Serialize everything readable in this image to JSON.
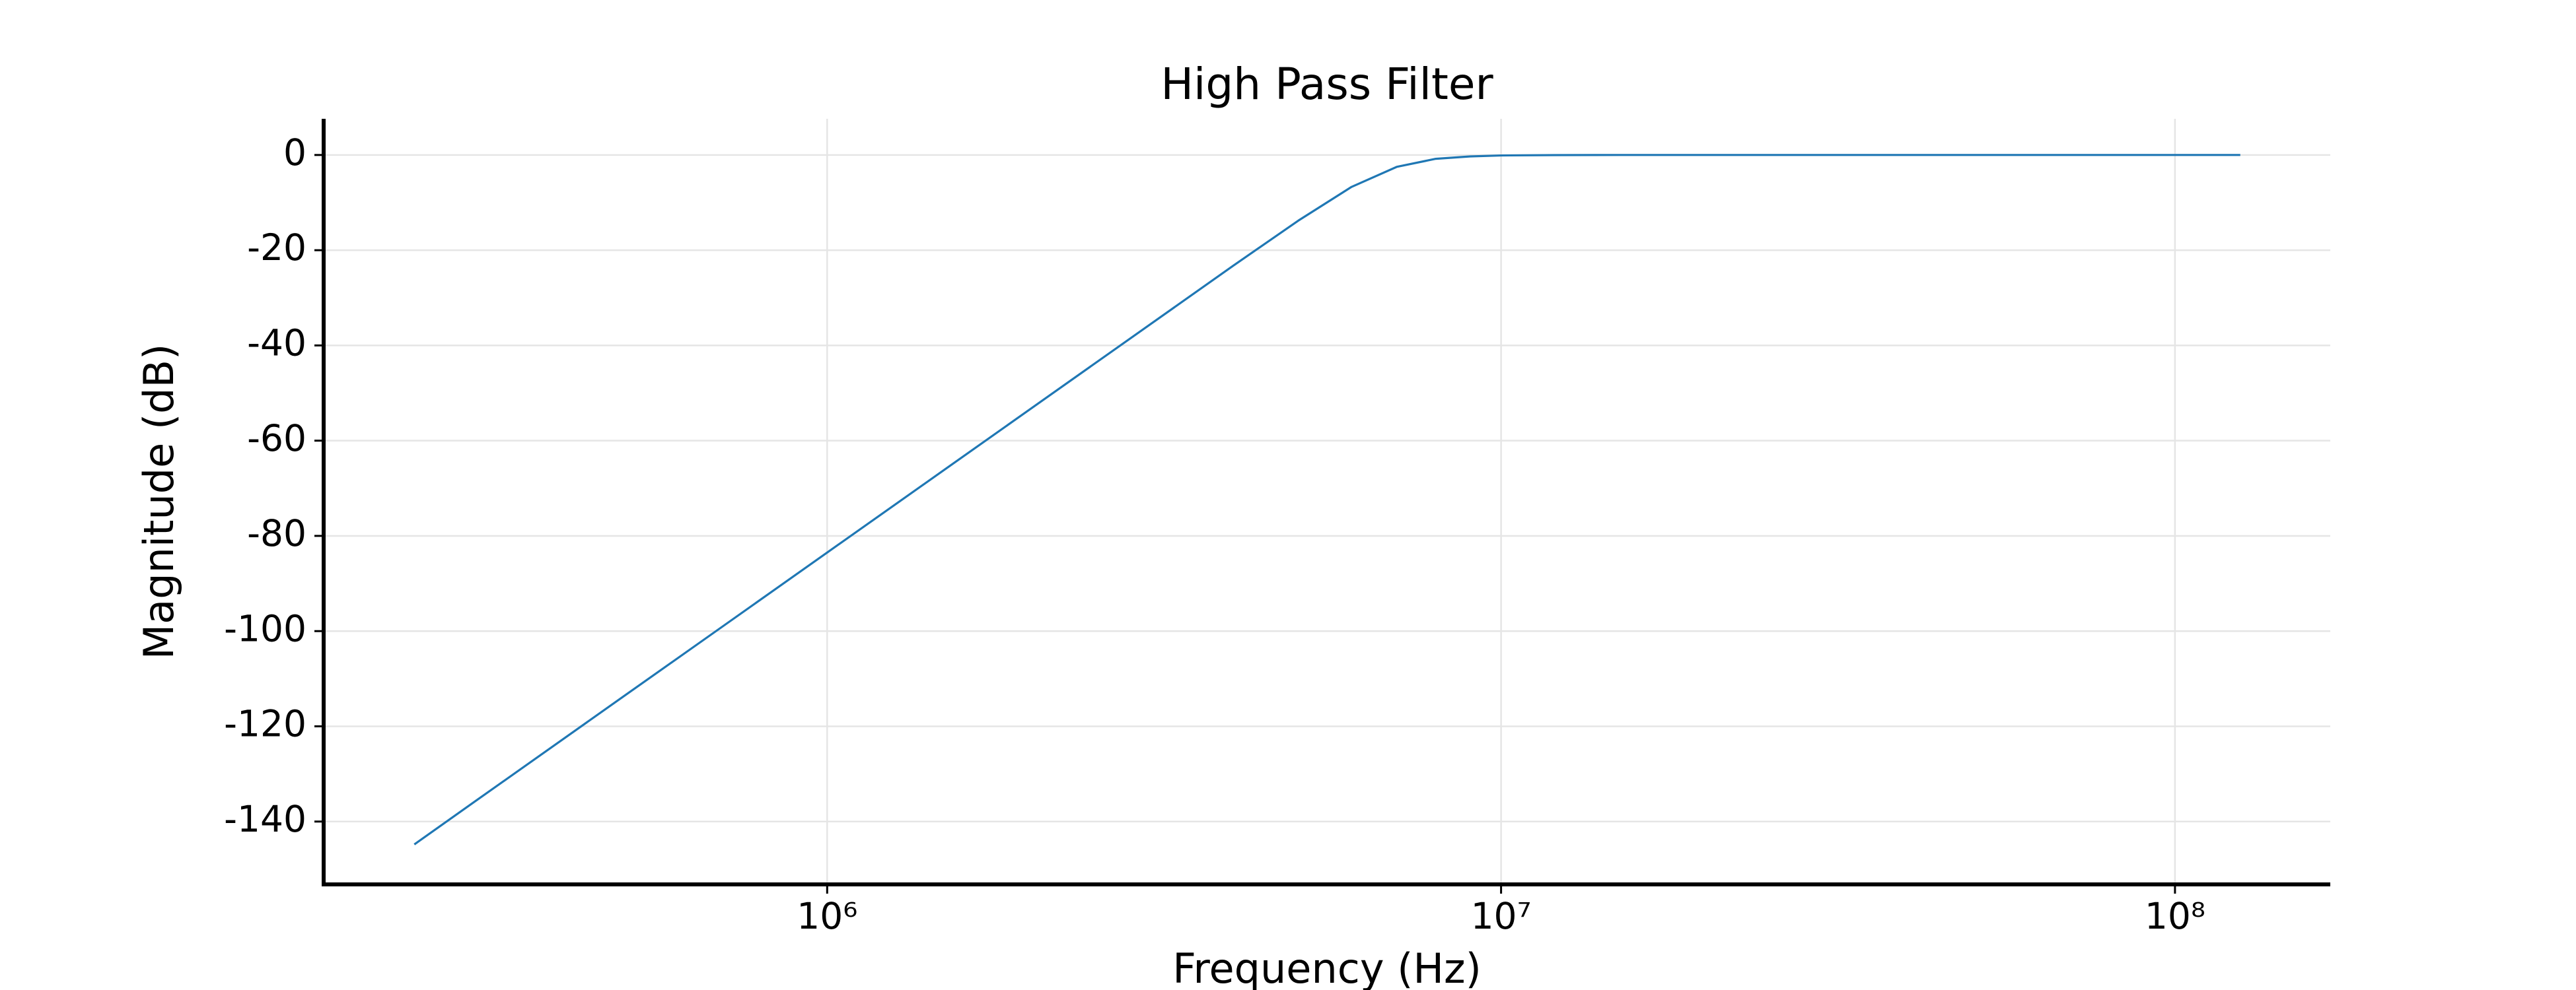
{
  "chart_data": {
    "type": "line",
    "title": "High Pass Filter",
    "x_label": "Frequency (Hz)",
    "y_label": "Magnitude (dB)",
    "x_scale": "log",
    "grid": true,
    "x": [
      244000,
      300000,
      400000,
      500000,
      700000,
      1000000,
      1500000,
      2000000,
      3000000,
      4000000,
      5000000,
      6000000,
      7000000,
      8000000,
      9000000,
      10000000,
      12000000,
      15000000,
      20000000,
      30000000,
      50000000,
      100000000,
      125000000
    ],
    "series": [
      {
        "name": "Magnitude",
        "color": "#1f77b4",
        "values": [
          -144.8,
          -135.8,
          -123.3,
          -113.6,
          -99.0,
          -83.5,
          -65.9,
          -53.4,
          -35.8,
          -23.3,
          -13.8,
          -6.7,
          -2.5,
          -0.8,
          -0.3,
          -0.1,
          -0.02,
          0,
          0,
          0,
          0,
          0,
          0
        ]
      }
    ],
    "xlim": [
      179000,
      170000000
    ],
    "xticks": [
      {
        "value": 1000000,
        "label": "10⁶"
      },
      {
        "value": 10000000,
        "label": "10⁷"
      },
      {
        "value": 100000000,
        "label": "10⁸"
      }
    ],
    "ylim": [
      -153.2,
      7.6
    ],
    "yticks": [
      0,
      -20,
      -40,
      -60,
      -80,
      -100,
      -120,
      -140
    ]
  }
}
